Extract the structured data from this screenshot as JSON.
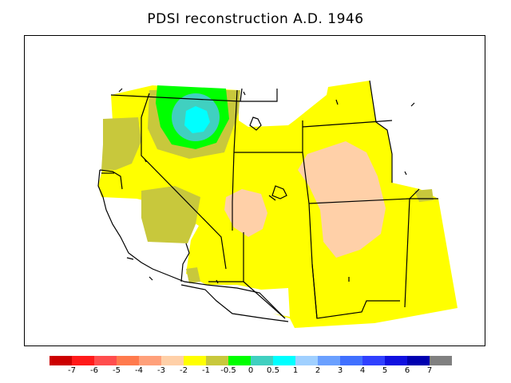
{
  "title": "PDSI reconstruction A.D. 1946",
  "legend": {
    "colors": [
      "#cc0000",
      "#ff1a1a",
      "#ff4d4d",
      "#ff7a4d",
      "#ffa07a",
      "#ffd0a8",
      "#ffff00",
      "#c8c83c",
      "#00ff00",
      "#40d0c0",
      "#00ffff",
      "#a0d0ff",
      "#6aa0ff",
      "#4070ff",
      "#3040ff",
      "#1010e0",
      "#0000b0",
      "#808080"
    ],
    "labels": [
      "-7",
      "-6",
      "-5",
      "-4",
      "-3",
      "-2",
      "-1",
      "-0.5",
      "0",
      "0.5",
      "1",
      "2",
      "3",
      "4",
      "5",
      "6",
      "7"
    ]
  },
  "map": {
    "region": "Western United States",
    "palette": {
      "yellow": "#ffff00",
      "olive": "#c8c83c",
      "green": "#00ff00",
      "teal": "#40d0c0",
      "cyan": "#00ffff",
      "peach": "#ffd0a8"
    }
  }
}
